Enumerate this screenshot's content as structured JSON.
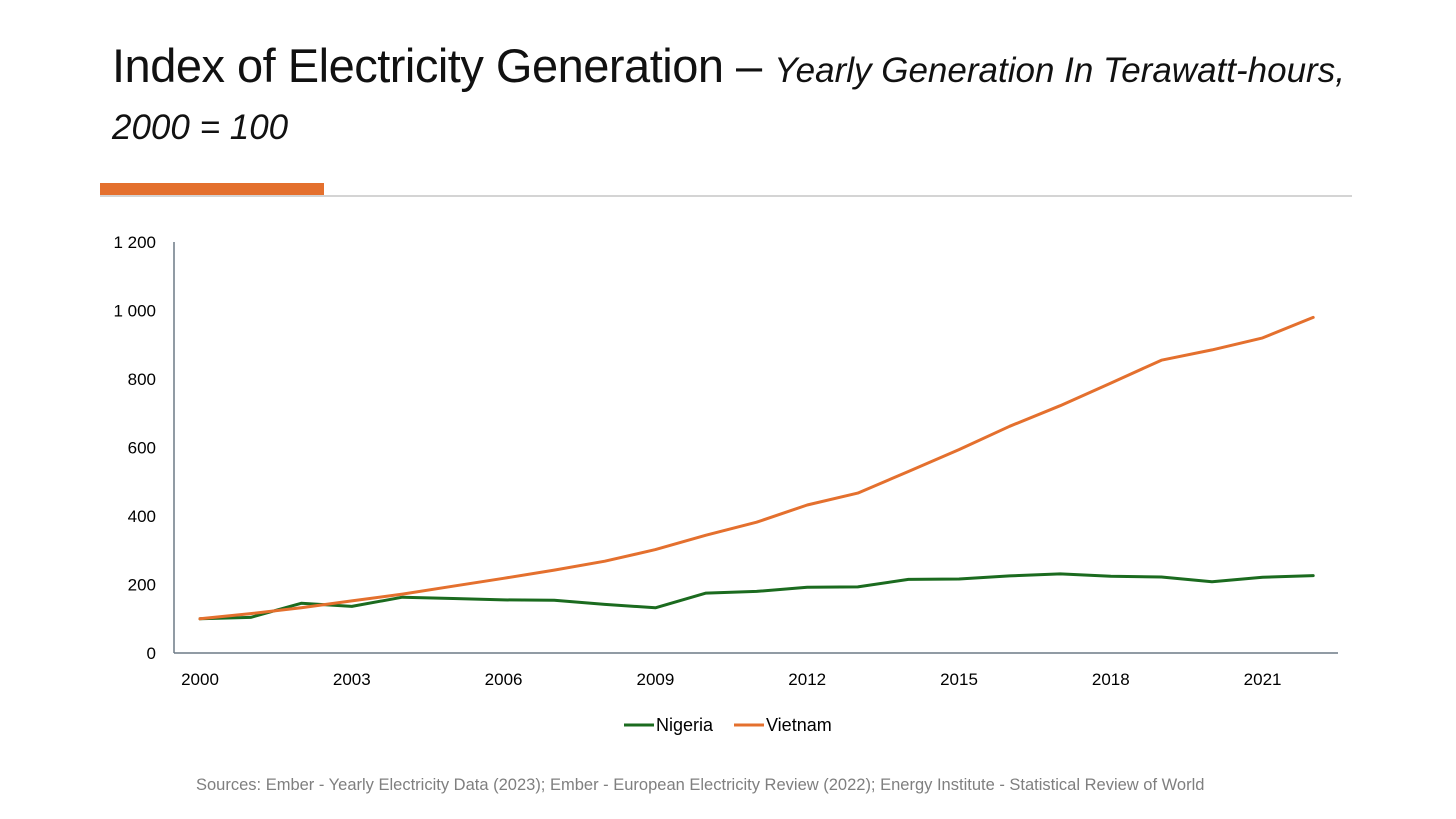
{
  "header": {
    "title": "Index of Electricity Generation –",
    "subtitle": "Yearly Generation In Terawatt-hours, 2000 = 100",
    "accent_color": "#e4702e"
  },
  "chart_data": {
    "type": "line",
    "x": [
      2000,
      2001,
      2002,
      2003,
      2004,
      2005,
      2006,
      2007,
      2008,
      2009,
      2010,
      2011,
      2012,
      2013,
      2014,
      2015,
      2016,
      2017,
      2018,
      2019,
      2020,
      2021,
      2022
    ],
    "x_tick_labels": [
      "2000",
      "2003",
      "2006",
      "2009",
      "2012",
      "2015",
      "2018",
      "2021"
    ],
    "x_ticks": [
      2000,
      2003,
      2006,
      2009,
      2012,
      2015,
      2018,
      2021
    ],
    "y_tick_labels": [
      "0",
      "200",
      "400",
      "600",
      "800",
      "1 000",
      "1 200"
    ],
    "y_ticks": [
      0,
      200,
      400,
      600,
      800,
      1000,
      1200
    ],
    "ylim": [
      0,
      1200
    ],
    "xlabel": "",
    "ylabel": "",
    "grid": false,
    "legend_position": "bottom",
    "series": [
      {
        "name": "Nigeria",
        "color": "#1b6b1f",
        "values": [
          100,
          104,
          145,
          136,
          163,
          159,
          155,
          154,
          142,
          132,
          175,
          180,
          192,
          193,
          215,
          216,
          225,
          231,
          224,
          222,
          208,
          221,
          226
        ]
      },
      {
        "name": "Vietnam",
        "color": "#e4702e",
        "values": [
          100,
          115,
          132,
          152,
          172,
          195,
          218,
          242,
          268,
          302,
          344,
          382,
          432,
          467,
          530,
          594,
          662,
          722,
          788,
          855,
          885,
          920,
          980
        ]
      }
    ]
  },
  "footer": {
    "source": "Sources:  Ember - Yearly Electricity Data (2023); Ember - European Electricity Review (2022); Energy Institute - Statistical Review of World"
  }
}
